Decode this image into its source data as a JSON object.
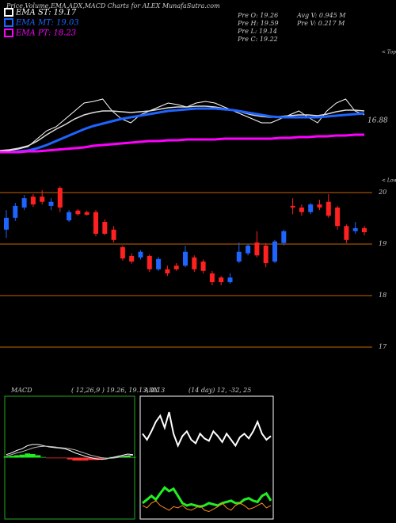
{
  "header": {
    "title": "Price,Volume,EMA,ADX,MACD Charts for ALEX  MunafaSutra.com",
    "legend": [
      {
        "text": "EMA ST: 19.17",
        "color": "#ffffff"
      },
      {
        "text": "EMA MT: 19.03",
        "color": "#1e64ff"
      },
      {
        "text": "EMA PT: 18.23",
        "color": "#ff00ff"
      }
    ],
    "info_left": [
      "Pre  O: 19.26",
      "Pre  H: 19.59",
      "Pre  L: 19.14",
      "Pre  C: 19.22"
    ],
    "info_right": [
      "Avg V: 0.945 M",
      "Pre  V: 0.217 M"
    ]
  },
  "chart_data": [
    {
      "type": "line",
      "ylim": [
        0,
        175
      ],
      "tops_label": "< Tops",
      "annotation": "16.88",
      "series": [
        {
          "color": "#ffffff",
          "width": 1,
          "values": [
            45,
            45,
            47,
            50,
            60,
            70,
            75,
            85,
            95,
            105,
            107,
            110,
            95,
            85,
            80,
            90,
            95,
            100,
            105,
            103,
            100,
            105,
            107,
            105,
            100,
            95,
            90,
            85,
            80,
            80,
            85,
            90,
            95,
            87,
            80,
            95,
            105,
            110,
            95,
            90
          ]
        },
        {
          "color": "#dddddd",
          "width": 1.5,
          "values": [
            45,
            46,
            48,
            51,
            57,
            65,
            72,
            78,
            85,
            90,
            93,
            95,
            95,
            94,
            93,
            94,
            95,
            97,
            99,
            100,
            100,
            101,
            101,
            100,
            98,
            96,
            93,
            90,
            88,
            87,
            88,
            89,
            90,
            90,
            89,
            91,
            94,
            96,
            96,
            95
          ]
        },
        {
          "color": "#1e64ff",
          "width": 3,
          "values": [
            43,
            43,
            44,
            45,
            48,
            52,
            57,
            62,
            67,
            72,
            76,
            79,
            82,
            85,
            87,
            89,
            91,
            93,
            95,
            96,
            97,
            98,
            98,
            98,
            97,
            96,
            94,
            92,
            90,
            88,
            87,
            87,
            87,
            87,
            87,
            88,
            89,
            90,
            91,
            92
          ]
        },
        {
          "color": "#ff00ff",
          "width": 3,
          "values": [
            43,
            43,
            43,
            44,
            44,
            45,
            46,
            47,
            48,
            49,
            51,
            52,
            53,
            54,
            55,
            56,
            57,
            57,
            58,
            58,
            59,
            59,
            59,
            59,
            60,
            60,
            60,
            60,
            60,
            60,
            61,
            61,
            62,
            62,
            63,
            63,
            64,
            64,
            65,
            65
          ]
        }
      ]
    },
    {
      "type": "candlestick",
      "ylim": [
        17,
        20
      ],
      "yticks": [
        17,
        18,
        19,
        20
      ],
      "lows_label": "< Lows",
      "up_color": "#1e64ff",
      "down_color": "#ff2020",
      "open": [
        19.28,
        19.51,
        19.71,
        19.92,
        19.92,
        19.74,
        20.09,
        19.46,
        19.65,
        19.62,
        19.62,
        19.43,
        19.28,
        18.94,
        18.77,
        18.74,
        18.77,
        18.51,
        18.51,
        18.58,
        18.58,
        18.74,
        18.66,
        18.43,
        18.35,
        18.26,
        18.66,
        18.82,
        19.03,
        18.97,
        18.66,
        19.02,
        19.74,
        19.71,
        19.62,
        19.77,
        19.82,
        19.71,
        19.35,
        19.25,
        19.31
      ],
      "high": [
        19.66,
        19.8,
        19.95,
        19.97,
        20.05,
        19.89,
        20.12,
        19.66,
        19.68,
        19.65,
        19.66,
        19.48,
        19.35,
        18.97,
        18.82,
        18.88,
        18.8,
        18.75,
        18.58,
        18.63,
        18.97,
        18.78,
        18.7,
        18.48,
        18.38,
        18.43,
        19.03,
        19.0,
        19.25,
        19.02,
        19.08,
        19.28,
        19.89,
        19.77,
        19.8,
        19.86,
        19.97,
        19.74,
        19.38,
        19.43,
        19.35
      ],
      "low": [
        19.12,
        19.45,
        19.66,
        19.72,
        19.77,
        19.66,
        19.62,
        19.43,
        19.55,
        19.55,
        19.15,
        19.17,
        19.03,
        18.68,
        18.62,
        18.7,
        18.46,
        18.48,
        18.38,
        18.48,
        18.55,
        18.46,
        18.43,
        18.2,
        18.2,
        18.23,
        18.63,
        18.78,
        18.74,
        18.55,
        18.63,
        18.97,
        19.58,
        19.55,
        19.58,
        19.66,
        19.51,
        19.28,
        19.02,
        19.2,
        19.17
      ],
      "close": [
        19.51,
        19.74,
        19.89,
        19.77,
        19.82,
        19.82,
        19.71,
        19.62,
        19.58,
        19.57,
        19.2,
        19.2,
        19.08,
        18.72,
        18.66,
        18.85,
        18.51,
        18.71,
        18.43,
        18.51,
        18.85,
        18.51,
        18.48,
        18.26,
        18.26,
        18.35,
        18.85,
        18.97,
        18.78,
        18.63,
        19.05,
        19.25,
        19.71,
        19.62,
        19.77,
        19.71,
        19.55,
        19.35,
        19.08,
        19.31,
        19.23
      ]
    },
    {
      "type": "macd",
      "title": "MACD",
      "params": "( 12,26,9 ) 19.26, 19.13, 0.13",
      "ylim": [
        -1,
        1
      ],
      "series": [
        {
          "color": "#ffffff",
          "values": [
            0.05,
            0.08,
            0.12,
            0.15,
            0.2,
            0.22,
            0.22,
            0.2,
            0.18,
            0.17,
            0.16,
            0.15,
            0.12,
            0.08,
            0.05,
            0.02,
            0,
            -0.02,
            -0.03,
            -0.02,
            0,
            0.02,
            0.04,
            0.06,
            0.05
          ]
        },
        {
          "color": "#bbbbbb",
          "values": [
            0.03,
            0.05,
            0.08,
            0.1,
            0.13,
            0.16,
            0.18,
            0.19,
            0.19,
            0.18,
            0.17,
            0.16,
            0.15,
            0.13,
            0.1,
            0.07,
            0.04,
            0.02,
            0,
            -0.01,
            -0.01,
            0,
            0.02,
            0.03,
            0.04
          ]
        }
      ],
      "histogram": [
        0.02,
        0.03,
        0.04,
        0.05,
        0.07,
        0.06,
        0.04,
        0.01,
        -0.01,
        -0.01,
        -0.01,
        -0.01,
        -0.03,
        -0.05,
        -0.05,
        -0.05,
        -0.04,
        -0.04,
        -0.03,
        -0.01,
        0.01,
        0.02,
        0.02,
        0.03,
        0.01
      ],
      "pos_color": "#22ee22",
      "neg_color": "#ff3030"
    },
    {
      "type": "adx",
      "title": "ADX",
      "params": "(14 day) 12, -32, 25",
      "ylim": [
        0,
        100
      ],
      "series": [
        {
          "color": "#ffffff",
          "width": 2,
          "values": [
            70,
            65,
            72,
            80,
            85,
            75,
            88,
            70,
            60,
            68,
            72,
            65,
            62,
            70,
            66,
            64,
            72,
            68,
            63,
            70,
            65,
            60,
            67,
            70,
            66,
            72,
            80,
            70,
            65,
            68
          ]
        },
        {
          "color": "#22ee22",
          "width": 3,
          "values": [
            12,
            15,
            18,
            15,
            20,
            25,
            22,
            24,
            18,
            12,
            10,
            11,
            10,
            9,
            10,
            12,
            11,
            10,
            12,
            13,
            14,
            12,
            12,
            15,
            16,
            14,
            13,
            18,
            20,
            14
          ]
        },
        {
          "color": "#ff8c1a",
          "width": 1,
          "values": [
            10,
            8,
            12,
            14,
            10,
            8,
            6,
            9,
            8,
            10,
            7,
            6,
            8,
            10,
            6,
            5,
            7,
            9,
            12,
            8,
            6,
            10,
            12,
            10,
            7,
            8,
            10,
            12,
            8,
            10
          ]
        }
      ]
    }
  ]
}
